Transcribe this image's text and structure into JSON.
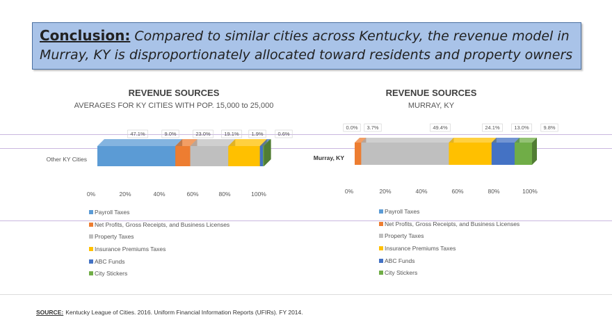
{
  "banner": {
    "lead": "Conclusion:",
    "text": "Compared to similar cities across Kentucky, the revenue model in Murray, KY is disproportionately allocated toward residents and property owners"
  },
  "colors": [
    "#5b9bd5",
    "#ed7d31",
    "#bfbfbf",
    "#ffc000",
    "#4472c4",
    "#70ad47"
  ],
  "chart_data": [
    {
      "type": "bar",
      "orientation": "horizontal-stacked-100",
      "title": "REVENUE SOURCES",
      "subtitle": "AVERAGES FOR KY CITIES WITH POP. 15,000 to 25,000",
      "categories": [
        "Other KY Cities"
      ],
      "series": [
        {
          "name": "Payroll Taxes",
          "values": [
            47.1
          ],
          "label": "47.1%"
        },
        {
          "name": "Net Profits, Gross Receipts, and Business Licenses",
          "values": [
            9.0
          ],
          "label": "9.0%"
        },
        {
          "name": "Property Taxes",
          "values": [
            23.0
          ],
          "label": "23.0%"
        },
        {
          "name": "Insurance Premiums Taxes",
          "values": [
            19.1
          ],
          "label": "19.1%"
        },
        {
          "name": "ABC Funds",
          "values": [
            1.9
          ],
          "label": "1.9%"
        },
        {
          "name": "City Stickers",
          "values": [
            0.6
          ],
          "label": "0.6%"
        }
      ],
      "xticks": [
        "0%",
        "20%",
        "40%",
        "60%",
        "80%",
        "100%"
      ],
      "xlim": [
        0,
        100
      ],
      "legend": "bottom"
    },
    {
      "type": "bar",
      "orientation": "horizontal-stacked-100",
      "title": "REVENUE SOURCES",
      "subtitle": "MURRAY, KY",
      "categories": [
        "Murray, KY"
      ],
      "series": [
        {
          "name": "Payroll Taxes",
          "values": [
            0.0
          ],
          "label": "0.0%"
        },
        {
          "name": "Net Profits, Gross Receipts, and Business Licenses",
          "values": [
            3.7
          ],
          "label": "3.7%"
        },
        {
          "name": "Property Taxes",
          "values": [
            49.4
          ],
          "label": "49.4%"
        },
        {
          "name": "Insurance Premiums Taxes",
          "values": [
            24.1
          ],
          "label": "24.1%"
        },
        {
          "name": "ABC Funds",
          "values": [
            13.0
          ],
          "label": "13.0%"
        },
        {
          "name": "City Stickers",
          "values": [
            9.8
          ],
          "label": "9.8%"
        }
      ],
      "xticks": [
        "0%",
        "20%",
        "40%",
        "60%",
        "80%",
        "100%"
      ],
      "xlim": [
        0,
        100
      ],
      "legend": "bottom"
    }
  ],
  "source": {
    "label": "SOURCE:",
    "text": "Kentucky League of Cities. 2016. Uniform Financial Information Reports (UFIRs). FY 2014."
  }
}
